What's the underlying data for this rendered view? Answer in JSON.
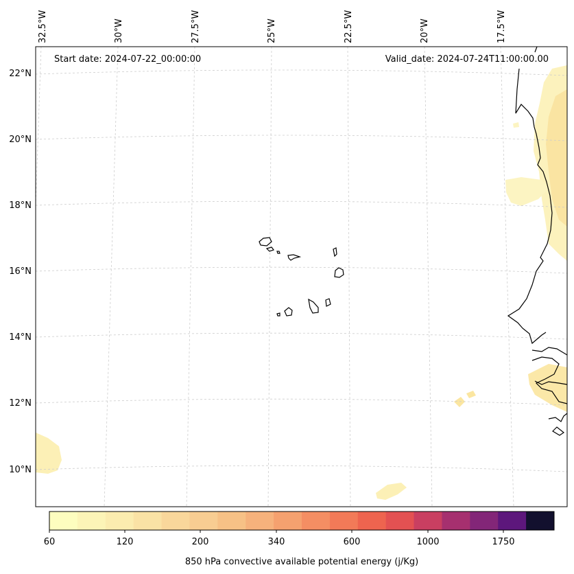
{
  "map": {
    "start_date_text": "Start date: 2024-07-22_00:00:00",
    "valid_date_text": "Valid_date: 2024-07-24T11:00:00.00",
    "longitude_labels": [
      "32.5°W",
      "30°W",
      "27.5°W",
      "25°W",
      "22.5°W",
      "20°W",
      "17.5°W"
    ],
    "latitude_labels": [
      "22°N",
      "20°N",
      "18°N",
      "16°N",
      "14°N",
      "12°N",
      "10°N"
    ],
    "shading_colors": [
      "#fcf6c0",
      "#fbe6a0",
      "#f9d088"
    ]
  },
  "colorbar": {
    "title": "850 hPa convective available potential energy (j/Kg)",
    "tick_labels": [
      "60",
      "120",
      "200",
      "340",
      "600",
      "1000",
      "1750"
    ],
    "colors": [
      "#fdfdbf",
      "#fcf4b7",
      "#fbecaf",
      "#fae2a5",
      "#f9d79b",
      "#f8cd92",
      "#f7c186",
      "#f6b27c",
      "#f5a16f",
      "#f48e63",
      "#f27a58",
      "#ee644f",
      "#e35152",
      "#c93f61",
      "#a6306f",
      "#832678",
      "#5d177c",
      "#12102e"
    ]
  }
}
